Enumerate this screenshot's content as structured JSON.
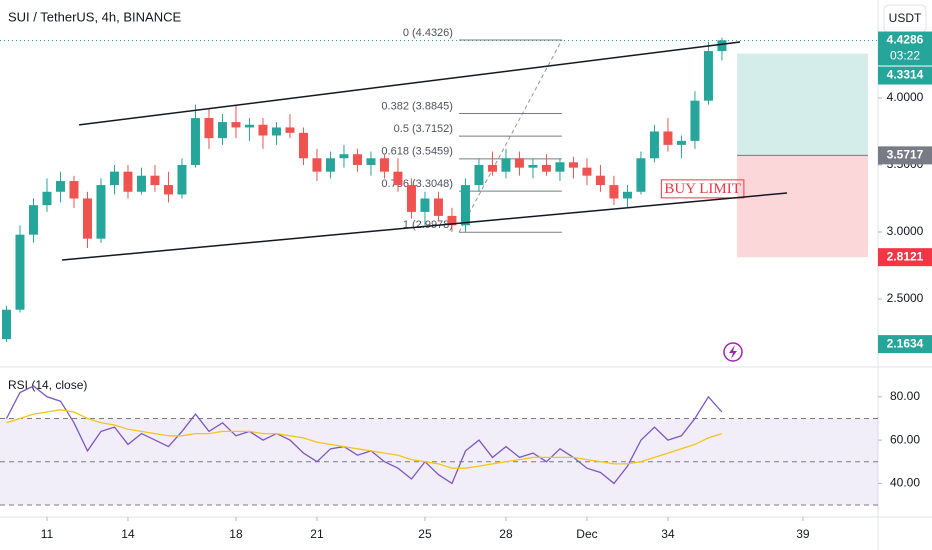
{
  "chart_data": [
    {
      "type": "candlestick",
      "title": "SUI / TetherUS, 4h, BINANCE",
      "currency_button": "USDT",
      "up_color": "#26a69a",
      "down_color": "#ef5350",
      "x": [
        9.5,
        10,
        10.5,
        11,
        11.5,
        12,
        12.5,
        13,
        13.5,
        14,
        14.5,
        15,
        15.5,
        16,
        16.5,
        17,
        17.5,
        18,
        18.5,
        19,
        19.5,
        20,
        20.5,
        21,
        21.5,
        22,
        22.5,
        23,
        23.5,
        24,
        24.5,
        25,
        25.5,
        26,
        26.5,
        27,
        27.5,
        28,
        28.5,
        29,
        29.5,
        30,
        30.5,
        31,
        31.5,
        32,
        32.5,
        33,
        33.5,
        34,
        34.5,
        35,
        35.5,
        36
      ],
      "open": [
        2.2,
        2.42,
        2.98,
        3.2,
        3.3,
        3.38,
        3.25,
        2.95,
        3.35,
        3.45,
        3.3,
        3.42,
        3.35,
        3.28,
        3.5,
        3.85,
        3.7,
        3.82,
        3.78,
        3.8,
        3.72,
        3.78,
        3.74,
        3.55,
        3.45,
        3.55,
        3.58,
        3.5,
        3.55,
        3.45,
        3.35,
        3.15,
        3.25,
        3.12,
        3.05,
        3.35,
        3.5,
        3.45,
        3.55,
        3.48,
        3.5,
        3.45,
        3.52,
        3.48,
        3.42,
        3.35,
        3.25,
        3.3,
        3.55,
        3.75,
        3.65,
        3.68,
        3.98,
        4.35
      ],
      "high": [
        2.45,
        3.05,
        3.25,
        3.4,
        3.45,
        3.42,
        3.3,
        3.4,
        3.5,
        3.5,
        3.48,
        3.5,
        3.45,
        3.55,
        3.95,
        3.92,
        3.88,
        3.95,
        3.85,
        3.85,
        3.82,
        3.88,
        3.78,
        3.62,
        3.6,
        3.65,
        3.62,
        3.6,
        3.58,
        3.55,
        3.4,
        3.3,
        3.3,
        3.18,
        3.4,
        3.55,
        3.6,
        3.62,
        3.6,
        3.55,
        3.58,
        3.55,
        3.56,
        3.55,
        3.5,
        3.42,
        3.35,
        3.6,
        3.8,
        3.85,
        3.72,
        4.05,
        4.42,
        4.45
      ],
      "low": [
        2.18,
        2.4,
        2.92,
        3.15,
        3.22,
        3.18,
        2.88,
        2.92,
        3.28,
        3.25,
        3.28,
        3.3,
        3.22,
        3.25,
        3.48,
        3.62,
        3.65,
        3.7,
        3.68,
        3.62,
        3.65,
        3.7,
        3.5,
        3.38,
        3.4,
        3.48,
        3.45,
        3.42,
        3.4,
        3.3,
        3.1,
        3.05,
        3.08,
        3.0,
        3.0,
        3.3,
        3.42,
        3.4,
        3.42,
        3.4,
        3.42,
        3.38,
        3.4,
        3.35,
        3.3,
        3.2,
        3.18,
        3.28,
        3.52,
        3.6,
        3.55,
        3.62,
        3.95,
        4.28
      ],
      "close": [
        2.42,
        2.98,
        3.2,
        3.3,
        3.38,
        3.25,
        2.95,
        3.35,
        3.45,
        3.3,
        3.42,
        3.35,
        3.28,
        3.5,
        3.85,
        3.7,
        3.82,
        3.78,
        3.8,
        3.72,
        3.78,
        3.74,
        3.55,
        3.45,
        3.55,
        3.58,
        3.5,
        3.55,
        3.45,
        3.35,
        3.15,
        3.25,
        3.12,
        3.05,
        3.35,
        3.5,
        3.45,
        3.55,
        3.48,
        3.5,
        3.45,
        3.52,
        3.48,
        3.42,
        3.35,
        3.25,
        3.3,
        3.55,
        3.75,
        3.65,
        3.68,
        3.98,
        4.35,
        4.43
      ],
      "xlim": [
        9.26,
        41.78
      ],
      "xticks": [
        11,
        14,
        18,
        21,
        25,
        28,
        {
          "value": 31,
          "label": "Dec"
        },
        34,
        39
      ],
      "ylim": [
        2.0,
        4.731
      ],
      "yticks": [
        {
          "value": 2.5,
          "label": "2.5000"
        },
        {
          "value": 3.0,
          "label": "3.0000"
        },
        {
          "value": 3.5,
          "label": "3.5000"
        },
        {
          "value": 4.0,
          "label": "4.0000"
        }
      ],
      "price_labels": [
        {
          "value": 4.4286,
          "color": "#26a69a",
          "countdown": "03:22",
          "dotted_line": true
        },
        {
          "value": 4.3314,
          "color": "#26a69a"
        },
        {
          "value": 3.5717,
          "color": "#787b86"
        },
        {
          "value": 2.8121,
          "color": "#f23645"
        },
        {
          "value": 2.1634,
          "color": "#26a69a"
        }
      ],
      "trendlines": [
        {
          "x": [
            12.19,
            36.67
          ],
          "y": [
            3.799,
            4.418
          ]
        },
        {
          "x": [
            11.56,
            38.41
          ],
          "y": [
            2.791,
            3.291
          ]
        }
      ],
      "fib": {
        "x": [
          26.26,
          30.07
        ],
        "levels": [
          {
            "label": "0 (4.4326)",
            "price": 4.4326
          },
          {
            "label": "0.382 (3.8845)",
            "price": 3.8845
          },
          {
            "label": "0.5 (3.7152)",
            "price": 3.7152
          },
          {
            "label": "0.618 (3.5459)",
            "price": 3.5459
          },
          {
            "label": "0.786 (3.3048)",
            "price": 3.3048
          },
          {
            "label": "1 (2.9978)",
            "price": 2.9978
          }
        ]
      },
      "position": {
        "x": [
          36.56,
          41.41
        ],
        "entry": 3.5717,
        "target": 4.3314,
        "stop": 2.8121
      },
      "buy_limit": {
        "text": "BUY LIMIT",
        "x": 36.85,
        "y": 3.31,
        "color": "#f23645"
      }
    },
    {
      "type": "line",
      "title": "RSI (14, close)",
      "x": [
        9.5,
        10,
        10.5,
        11,
        11.5,
        12,
        12.5,
        13,
        13.5,
        14,
        14.5,
        15,
        15.5,
        16,
        16.5,
        17,
        17.5,
        18,
        18.5,
        19,
        19.5,
        20,
        20.5,
        21,
        21.5,
        22,
        22.5,
        23,
        23.5,
        24,
        24.5,
        25,
        25.5,
        26,
        26.5,
        27,
        27.5,
        28,
        28.5,
        29,
        29.5,
        30,
        30.5,
        31,
        31.5,
        32,
        32.5,
        33,
        33.5,
        34,
        34.5,
        35,
        35.5,
        36
      ],
      "series": [
        {
          "color": "#7e57c2",
          "values": [
            70,
            82,
            85,
            80,
            78,
            68,
            55,
            64,
            66,
            58,
            63,
            60,
            57,
            64,
            72,
            64,
            68,
            62,
            64,
            60,
            63,
            60,
            54,
            50,
            56,
            57,
            53,
            55,
            50,
            47,
            42,
            50,
            44,
            40,
            55,
            60,
            52,
            57,
            52,
            54,
            50,
            56,
            52,
            47,
            45,
            40,
            48,
            60,
            66,
            60,
            62,
            70,
            80,
            73
          ]
        },
        {
          "color": "#f5c518",
          "values": [
            68,
            70,
            72,
            73,
            74,
            73,
            70,
            68,
            67,
            65,
            64,
            63,
            62,
            62,
            63,
            63,
            64,
            64,
            64,
            63,
            63,
            62,
            61,
            59,
            58,
            57,
            56,
            55,
            54,
            53,
            51,
            50,
            49,
            47,
            47,
            48,
            49,
            50,
            51,
            52,
            52,
            52,
            52,
            51,
            50,
            49,
            49,
            50,
            52,
            54,
            56,
            58,
            61,
            63
          ]
        }
      ],
      "ylim": [
        30,
        92.4
      ],
      "yticks": [
        {
          "value": 40,
          "label": "40.00"
        },
        {
          "value": 60,
          "label": "60.00"
        },
        {
          "value": 80,
          "label": "80.00"
        }
      ],
      "band": [
        30,
        70
      ],
      "band_color": "rgba(126,87,194,0.1)",
      "hlines": [
        70,
        50,
        30
      ]
    }
  ]
}
